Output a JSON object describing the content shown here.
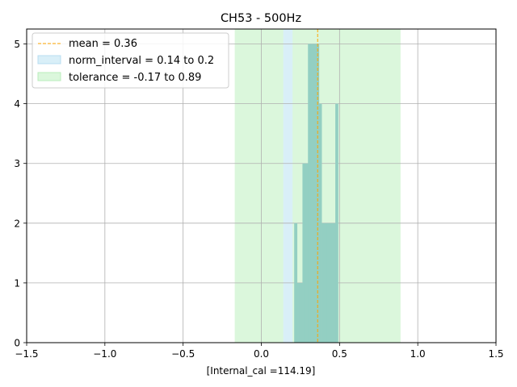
{
  "chart_data": {
    "type": "bar",
    "title": "CH53 - 500Hz",
    "xlabel": "[Internal_cal =114.19]",
    "ylabel": "",
    "xlim": [
      -1.5,
      1.5
    ],
    "ylim": [
      0,
      5.25
    ],
    "xticks": [
      -1.5,
      -1.0,
      -0.5,
      0.0,
      0.5,
      1.0,
      1.5
    ],
    "xtick_labels": [
      "−1.5",
      "−1.0",
      "−0.5",
      "0.0",
      "0.5",
      "1.0",
      "1.5"
    ],
    "yticks": [
      0,
      1,
      2,
      3,
      4,
      5
    ],
    "ytick_labels": [
      "0",
      "1",
      "2",
      "3",
      "4",
      "5"
    ],
    "grid": true,
    "legend_position": "top-left",
    "histogram": {
      "bin_edges": [
        0.21,
        0.228,
        0.245,
        0.263,
        0.28,
        0.298,
        0.315,
        0.333,
        0.35,
        0.368,
        0.385,
        0.403,
        0.42,
        0.438,
        0.455,
        0.473,
        0.49
      ],
      "counts": [
        2,
        1,
        1,
        3,
        3,
        5,
        5,
        5,
        5,
        4,
        2,
        2,
        2,
        2,
        2,
        4
      ],
      "color": "#93cfc2"
    },
    "mean": {
      "label": "mean = 0.36",
      "value": 0.36,
      "color": "#ffa500"
    },
    "norm_interval": {
      "label": "norm_interval = 0.14 to 0.2",
      "from": 0.14,
      "to": 0.2,
      "color": "#d9eff8"
    },
    "tolerance": {
      "label": "tolerance = -0.17 to 0.89",
      "from": -0.17,
      "to": 0.89,
      "color": "#dbf7dc"
    }
  }
}
